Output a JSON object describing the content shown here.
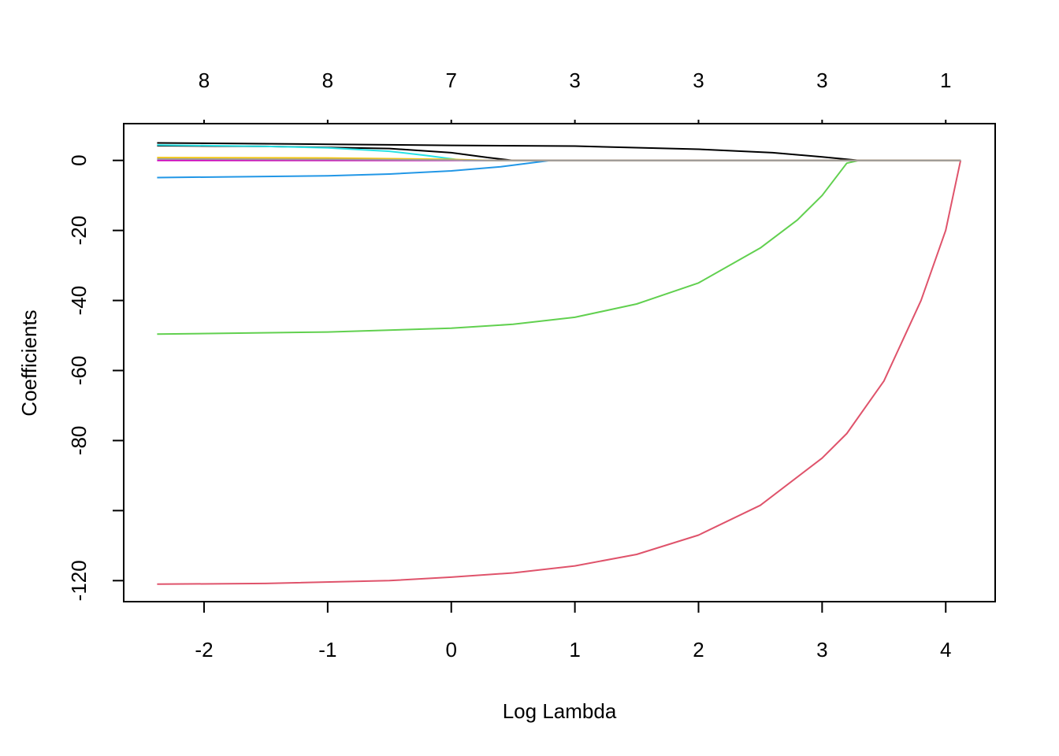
{
  "chart_data": {
    "type": "line",
    "title": "",
    "xlabel": "Log Lambda",
    "ylabel": "Coefficients",
    "xlim": [
      -2.65,
      4.4
    ],
    "ylim": [
      -126,
      10.5
    ],
    "x_ticks": [
      -2,
      -1,
      0,
      1,
      2,
      3,
      4
    ],
    "x_tick_labels": [
      "-2",
      "-1",
      "0",
      "1",
      "2",
      "3",
      "4"
    ],
    "y_ticks": [
      0,
      -20,
      -40,
      -60,
      -80,
      -100,
      -120
    ],
    "y_tick_labels": [
      "0",
      "-20",
      "-40",
      "-60",
      "-80",
      "",
      "-120"
    ],
    "top_ticks": [
      -2,
      -1,
      0,
      1,
      2,
      3,
      4
    ],
    "top_tick_labels": [
      "8",
      "8",
      "7",
      "3",
      "3",
      "3",
      "1"
    ],
    "grid": false,
    "legend": "none",
    "series": [
      {
        "color": "#000000",
        "points": [
          [
            -2.38,
            5.0
          ],
          [
            -1.0,
            4.6
          ],
          [
            0.0,
            4.3
          ],
          [
            1.0,
            4.1
          ],
          [
            2.0,
            3.2
          ],
          [
            2.6,
            2.2
          ],
          [
            3.0,
            1.0
          ],
          [
            3.3,
            0.0
          ],
          [
            4.12,
            0.0
          ]
        ]
      },
      {
        "color": "#000000",
        "points": [
          [
            -2.38,
            4.2
          ],
          [
            -1.5,
            4.0
          ],
          [
            -0.5,
            3.4
          ],
          [
            0.0,
            2.2
          ],
          [
            0.3,
            0.8
          ],
          [
            0.5,
            0.0
          ],
          [
            4.12,
            0.0
          ]
        ]
      },
      {
        "color": "#DF536B",
        "points": [
          [
            -2.38,
            -121.0
          ],
          [
            -1.5,
            -120.8
          ],
          [
            -0.5,
            -120.0
          ],
          [
            0.0,
            -119.0
          ],
          [
            0.5,
            -117.8
          ],
          [
            1.0,
            -115.8
          ],
          [
            1.5,
            -112.5
          ],
          [
            2.0,
            -107.0
          ],
          [
            2.5,
            -98.5
          ],
          [
            3.0,
            -85.0
          ],
          [
            3.2,
            -78.0
          ],
          [
            3.5,
            -63.0
          ],
          [
            3.8,
            -40.0
          ],
          [
            4.0,
            -20.0
          ],
          [
            4.12,
            0.0
          ]
        ]
      },
      {
        "color": "#61D04F",
        "points": [
          [
            -2.38,
            -49.6
          ],
          [
            -1.0,
            -49.0
          ],
          [
            0.0,
            -47.9
          ],
          [
            0.5,
            -46.8
          ],
          [
            1.0,
            -44.8
          ],
          [
            1.5,
            -41.0
          ],
          [
            2.0,
            -35.0
          ],
          [
            2.5,
            -25.0
          ],
          [
            2.8,
            -17.0
          ],
          [
            3.0,
            -10.0
          ],
          [
            3.2,
            -0.8
          ],
          [
            3.3,
            0.0
          ],
          [
            4.12,
            0.0
          ]
        ]
      },
      {
        "color": "#2297E6",
        "points": [
          [
            -2.38,
            -4.9
          ],
          [
            -1.0,
            -4.4
          ],
          [
            -0.5,
            -3.9
          ],
          [
            0.0,
            -3.0
          ],
          [
            0.4,
            -1.8
          ],
          [
            0.8,
            0.0
          ],
          [
            4.12,
            0.0
          ]
        ]
      },
      {
        "color": "#28E2E5",
        "points": [
          [
            -2.38,
            4.4
          ],
          [
            -1.5,
            4.0
          ],
          [
            -1.0,
            3.6
          ],
          [
            -0.5,
            2.6
          ],
          [
            -0.2,
            1.4
          ],
          [
            0.1,
            0.0
          ],
          [
            4.12,
            0.0
          ]
        ]
      },
      {
        "color": "#CD0BBC",
        "points": [
          [
            -2.38,
            0.0
          ],
          [
            4.12,
            0.0
          ]
        ]
      },
      {
        "color": "#F5C710",
        "points": [
          [
            -2.38,
            0.8
          ],
          [
            -1.0,
            0.7
          ],
          [
            0.0,
            0.3
          ],
          [
            0.3,
            0.0
          ],
          [
            4.12,
            0.0
          ]
        ]
      },
      {
        "color": "#9E9E9E",
        "points": [
          [
            -2.38,
            0.4
          ],
          [
            -1.0,
            0.3
          ],
          [
            0.0,
            0.1
          ],
          [
            0.2,
            0.0
          ],
          [
            4.12,
            0.0
          ]
        ]
      }
    ]
  }
}
